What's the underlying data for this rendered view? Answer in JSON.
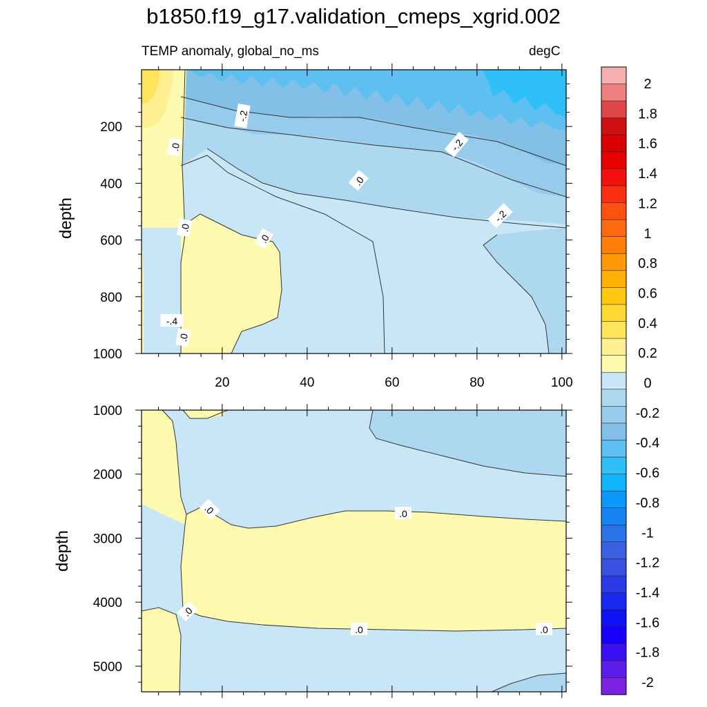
{
  "title": "b1850.f19_g17.validation_cmeps_xgrid.002",
  "subtitle_left": "TEMP anomaly, global_no_ms",
  "subtitle_right": "degC",
  "chart_data": [
    {
      "type": "heatmap",
      "panel": "upper",
      "ylabel": "depth",
      "y_reversed": true,
      "xlim": [
        1,
        101
      ],
      "ylim": [
        0,
        1000
      ],
      "x_ticks": [
        20,
        40,
        60,
        80,
        100
      ],
      "y_ticks": [
        200,
        400,
        600,
        800,
        1000
      ],
      "contour_labels": [
        ".0",
        "-.2",
        ".0",
        ".0",
        ".0",
        ".0",
        "-.2",
        "-.2",
        "-.4"
      ],
      "regions": [
        {
          "value_range": [
            0,
            0.1
          ],
          "where": "x 1-12, all depths; x 12-34, depth 560-1000"
        },
        {
          "value_range": [
            0.1,
            0.2
          ],
          "where": "x 1-12, depth 0-100"
        },
        {
          "value_range": [
            -0.1,
            0
          ],
          "where": "x 12-60 below 250 m"
        },
        {
          "value_range": [
            -0.2,
            -0.1
          ],
          "where": "x 60-101 below 300 m"
        },
        {
          "value_range": [
            -0.6,
            -0.3
          ],
          "where": "x 12-101, depth 0-250"
        },
        {
          "value_range": [
            -0.7,
            -0.6
          ],
          "where": "x 85-101, depth 0-150"
        }
      ]
    },
    {
      "type": "heatmap",
      "panel": "lower",
      "ylabel": "depth",
      "y_reversed": true,
      "xlim": [
        1,
        101
      ],
      "ylim": [
        1000,
        5400
      ],
      "x_ticks": [
        20,
        40,
        60,
        80,
        100
      ],
      "y_ticks": [
        1000,
        2000,
        3000,
        4000,
        5000
      ],
      "contour_labels": [
        ".0",
        ".0",
        ".0",
        ".0",
        ".0"
      ],
      "regions": [
        {
          "value_range": [
            0,
            0.1
          ],
          "where": "x 1-12, depth 1000-2400 and 4100-5400; x 12-101, depth 2600-4400"
        },
        {
          "value_range": [
            -0.1,
            0
          ],
          "where": "remaining area"
        },
        {
          "value_range": [
            -0.2,
            -0.1
          ],
          "where": "x 67-101, depth 1000-1900"
        }
      ]
    }
  ],
  "colorbar": {
    "labels": [
      "2",
      "1.8",
      "1.6",
      "1.4",
      "1.2",
      "1",
      "0.8",
      "0.6",
      "0.4",
      "0.2",
      "0",
      "-0.2",
      "-0.4",
      "-0.6",
      "-0.8",
      "-1",
      "-1.2",
      "-1.4",
      "-1.6",
      "-1.8",
      "-2"
    ],
    "colors": [
      "#f7b0b0",
      "#f08080",
      "#e04848",
      "#cf1010",
      "#d80000",
      "#e60000",
      "#f21010",
      "#fc3010",
      "#fe5010",
      "#fe6a10",
      "#fd7f0a",
      "#fd9a06",
      "#fdb004",
      "#fdc810",
      "#fcd830",
      "#fde45a",
      "#fef090",
      "#fdfab0",
      "#c8e6f6",
      "#aed8f0",
      "#96cbeb",
      "#82c0e8",
      "#5ec0f0",
      "#2ec0f6",
      "#10b4fc",
      "#0a98fc",
      "#1784f4",
      "#2a72e8",
      "#3a62e0",
      "#3a50e0",
      "#2a3ce8",
      "#1a28f0",
      "#1012f6",
      "#1600fc",
      "#3a10f4",
      "#5a1ce8",
      "#7a22e0"
    ]
  },
  "colors": {
    "pos_0_0.1": "#fdfab0",
    "pos_0.1_0.2": "#fef090",
    "pos_0.2_0.3": "#fde45a",
    "neg_0_-0.1": "#c8e6f6",
    "neg_-0.1_-0.2": "#aed8f0",
    "neg_-0.2_-0.3": "#96cbeb",
    "neg_-0.3_-0.4": "#82c0e8",
    "neg_-0.4_-0.5": "#5ec0f0",
    "neg_-0.5_-0.6": "#2ec0f6"
  }
}
